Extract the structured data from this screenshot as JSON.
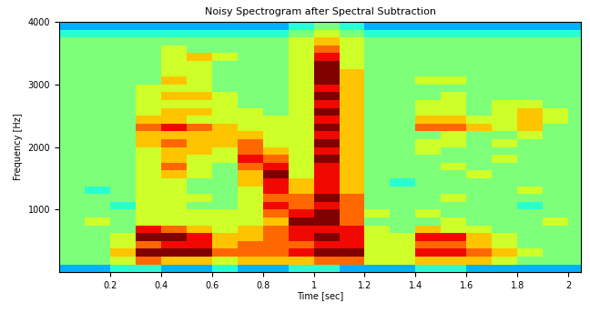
{
  "chart_data": {
    "type": "heatmap",
    "title": "Noisy Spectrogram after Spectral Subtraction",
    "x_label": "Time [sec]",
    "y_label": "Frequency [Hz]",
    "x": [
      0,
      0.1,
      0.2,
      0.3,
      0.4,
      0.5,
      0.6,
      0.7,
      0.8,
      0.9,
      1,
      1.1,
      1.2,
      1.3,
      1.4,
      1.5,
      1.6,
      1.7,
      1.8,
      1.9,
      2,
      2.1
    ],
    "y": [
      0,
      125,
      250,
      375,
      500,
      625,
      750,
      875,
      1000,
      1125,
      1250,
      1375,
      1500,
      1625,
      1750,
      1875,
      2000,
      2125,
      2250,
      2375,
      2500,
      2625,
      2750,
      2875,
      3000,
      3125,
      3250,
      3375,
      3500,
      3625,
      3750,
      3875,
      4000
    ],
    "cells": [
      [
        3,
        3,
        4,
        4,
        3,
        3,
        4,
        3,
        3,
        4,
        4,
        3,
        3,
        3,
        4,
        4,
        3,
        3,
        3,
        3,
        3
      ],
      [
        5,
        5,
        6,
        8,
        7,
        7,
        6,
        7,
        7,
        7,
        8,
        8,
        6,
        6,
        7,
        7,
        7,
        6,
        5,
        5,
        5
      ],
      [
        5,
        5,
        7,
        10,
        10,
        10,
        8,
        8,
        8,
        9,
        10,
        10,
        6,
        6,
        9,
        9,
        8,
        7,
        6,
        5,
        5
      ],
      [
        5,
        5,
        6,
        8,
        9,
        9,
        7,
        8,
        8,
        8,
        9,
        9,
        6,
        6,
        8,
        8,
        7,
        6,
        5,
        5,
        5
      ],
      [
        5,
        5,
        6,
        10,
        10,
        9,
        7,
        7,
        8,
        9,
        10,
        9,
        6,
        6,
        9,
        9,
        7,
        6,
        5,
        5,
        5
      ],
      [
        5,
        5,
        5,
        9,
        8,
        7,
        6,
        7,
        8,
        9,
        9,
        9,
        6,
        5,
        7,
        6,
        6,
        5,
        5,
        5,
        5
      ],
      [
        5,
        6,
        5,
        6,
        6,
        6,
        6,
        6,
        7,
        10,
        10,
        8,
        5,
        5,
        5,
        6,
        5,
        5,
        5,
        6,
        5
      ],
      [
        5,
        5,
        5,
        6,
        6,
        6,
        6,
        6,
        8,
        9,
        10,
        8,
        6,
        5,
        6,
        5,
        5,
        5,
        5,
        5,
        5
      ],
      [
        5,
        5,
        4,
        6,
        6,
        5,
        5,
        6,
        9,
        8,
        9,
        8,
        5,
        5,
        5,
        5,
        5,
        5,
        4,
        5,
        5
      ],
      [
        5,
        5,
        5,
        6,
        6,
        6,
        5,
        6,
        8,
        8,
        10,
        8,
        5,
        5,
        5,
        6,
        5,
        5,
        5,
        5,
        5
      ],
      [
        5,
        4,
        5,
        6,
        6,
        5,
        5,
        6,
        9,
        7,
        9,
        7,
        5,
        5,
        5,
        5,
        5,
        5,
        6,
        5,
        5
      ],
      [
        5,
        5,
        5,
        6,
        6,
        5,
        5,
        7,
        9,
        7,
        9,
        7,
        5,
        4,
        5,
        5,
        5,
        5,
        5,
        5,
        5
      ],
      [
        5,
        5,
        5,
        6,
        7,
        6,
        5,
        7,
        10,
        6,
        9,
        7,
        5,
        5,
        5,
        5,
        6,
        5,
        5,
        5,
        5
      ],
      [
        5,
        5,
        5,
        6,
        8,
        6,
        5,
        8,
        9,
        6,
        9,
        7,
        5,
        5,
        5,
        6,
        5,
        5,
        5,
        5,
        5
      ],
      [
        5,
        5,
        5,
        6,
        7,
        6,
        6,
        9,
        8,
        6,
        10,
        7,
        5,
        5,
        5,
        5,
        5,
        6,
        5,
        5,
        5
      ],
      [
        5,
        5,
        5,
        6,
        7,
        7,
        6,
        8,
        7,
        6,
        9,
        7,
        5,
        5,
        6,
        5,
        5,
        5,
        5,
        5,
        5
      ],
      [
        5,
        5,
        5,
        7,
        8,
        7,
        7,
        8,
        6,
        6,
        10,
        7,
        5,
        5,
        6,
        6,
        5,
        6,
        5,
        5,
        5
      ],
      [
        5,
        5,
        5,
        7,
        7,
        7,
        7,
        7,
        6,
        6,
        9,
        7,
        5,
        5,
        5,
        6,
        5,
        5,
        6,
        5,
        5
      ],
      [
        5,
        5,
        5,
        8,
        9,
        8,
        7,
        6,
        6,
        6,
        10,
        7,
        5,
        5,
        8,
        8,
        7,
        6,
        7,
        5,
        5
      ],
      [
        5,
        5,
        5,
        7,
        7,
        6,
        6,
        6,
        6,
        6,
        9,
        7,
        5,
        5,
        7,
        7,
        6,
        6,
        7,
        6,
        5
      ],
      [
        5,
        5,
        5,
        6,
        7,
        7,
        6,
        6,
        5,
        6,
        10,
        7,
        5,
        5,
        6,
        6,
        5,
        6,
        7,
        6,
        5
      ],
      [
        5,
        5,
        5,
        6,
        6,
        6,
        6,
        5,
        5,
        6,
        9,
        7,
        5,
        5,
        6,
        6,
        5,
        6,
        6,
        5,
        5
      ],
      [
        5,
        5,
        5,
        6,
        7,
        7,
        6,
        5,
        5,
        6,
        10,
        7,
        5,
        5,
        5,
        6,
        5,
        5,
        5,
        5,
        5
      ],
      [
        5,
        5,
        5,
        6,
        6,
        6,
        5,
        5,
        5,
        6,
        9,
        7,
        5,
        5,
        5,
        5,
        5,
        5,
        5,
        5,
        5
      ],
      [
        5,
        5,
        5,
        5,
        7,
        6,
        5,
        5,
        5,
        6,
        10,
        7,
        5,
        5,
        6,
        6,
        5,
        5,
        5,
        5,
        5
      ],
      [
        5,
        5,
        5,
        5,
        6,
        6,
        5,
        5,
        5,
        6,
        10,
        7,
        5,
        5,
        5,
        5,
        5,
        5,
        5,
        5,
        5
      ],
      [
        5,
        5,
        5,
        5,
        6,
        6,
        5,
        5,
        5,
        6,
        10,
        6,
        5,
        5,
        5,
        5,
        5,
        5,
        5,
        5,
        5
      ],
      [
        5,
        5,
        5,
        5,
        6,
        7,
        6,
        5,
        5,
        6,
        9,
        6,
        5,
        5,
        5,
        5,
        5,
        5,
        5,
        5,
        5
      ],
      [
        5,
        5,
        5,
        5,
        6,
        5,
        5,
        5,
        5,
        6,
        8,
        6,
        5,
        5,
        5,
        5,
        5,
        5,
        5,
        5,
        5
      ],
      [
        5,
        5,
        5,
        5,
        5,
        5,
        5,
        5,
        5,
        6,
        7,
        6,
        5,
        5,
        5,
        5,
        5,
        5,
        5,
        5,
        5
      ],
      [
        4,
        4,
        4,
        4,
        4,
        4,
        4,
        4,
        4,
        5,
        6,
        5,
        4,
        4,
        4,
        4,
        4,
        4,
        4,
        4,
        4
      ],
      [
        3,
        3,
        3,
        3,
        3,
        3,
        3,
        3,
        3,
        4,
        5,
        4,
        3,
        3,
        3,
        3,
        3,
        3,
        3,
        3,
        3
      ]
    ],
    "zlim": [
      0,
      10
    ],
    "xlim": [
      0,
      2.05
    ],
    "ylim": [
      0,
      4000
    ],
    "xticks": [
      0.2,
      0.4,
      0.6,
      0.8,
      1,
      1.2,
      1.4,
      1.6,
      1.8,
      2
    ],
    "yticks": [
      1000,
      2000,
      3000,
      4000
    ],
    "grid": false
  }
}
